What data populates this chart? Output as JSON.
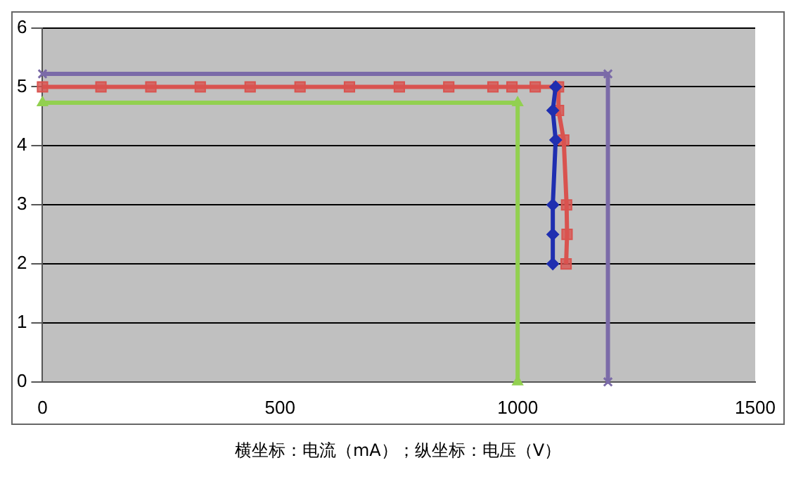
{
  "chart_data": {
    "type": "line",
    "xlim": [
      0,
      1500
    ],
    "xticks": [
      0,
      500,
      1000,
      1500
    ],
    "ylim": [
      0,
      6
    ],
    "yticks": [
      0,
      1,
      2,
      3,
      4,
      5,
      6
    ],
    "grid": "y",
    "legend": false,
    "line_style": "solid",
    "annotations": [
      "横坐标：电流（mA）；纵坐标：电压（V）"
    ],
    "series": [
      {
        "color": "#1f2fb0",
        "marker": "diamond",
        "x": [
          1080,
          1074,
          1080,
          1074,
          1074,
          1074
        ],
        "values": [
          5.0,
          4.6,
          4.1,
          3.0,
          2.5,
          2.0
        ]
      },
      {
        "color": "#d9534f",
        "marker": "square",
        "x": [
          0,
          123,
          228,
          332,
          437,
          542,
          646,
          751,
          855,
          948,
          988,
          1037,
          1086,
          1086,
          1097,
          1103,
          1104,
          1102
        ],
        "values": [
          5.0,
          5.0,
          5.0,
          5.0,
          5.0,
          5.0,
          5.0,
          5.0,
          5.0,
          5.0,
          5.0,
          5.0,
          5.0,
          4.6,
          4.1,
          3.0,
          2.5,
          2.0
        ]
      },
      {
        "color": "#92d050",
        "marker": "triangle",
        "x": [
          0,
          1000,
          1000
        ],
        "values": [
          4.73,
          4.73,
          0
        ]
      },
      {
        "color": "#7b6ba8",
        "marker": "cross",
        "x": [
          0,
          1190,
          1190
        ],
        "values": [
          5.22,
          5.22,
          0
        ]
      }
    ]
  }
}
